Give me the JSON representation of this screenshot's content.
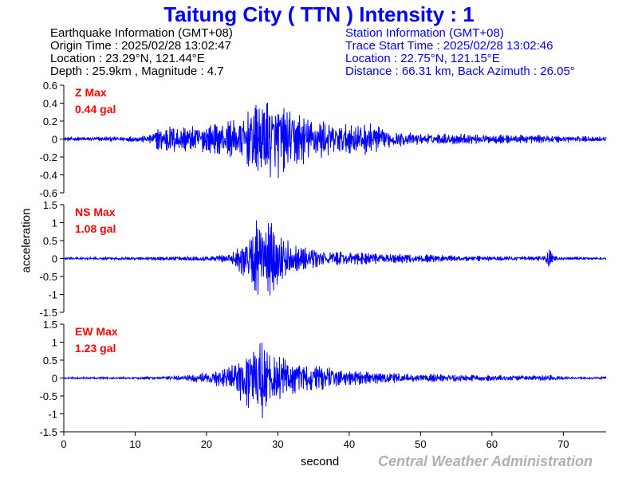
{
  "title": "Taitung City ( TTN ) Intensity : 1",
  "earthquake_info": [
    "Earthquake Information  (GMT+08)",
    "Origin Time : 2025/02/28 13:02:47",
    "Location : 23.29°N, 121.44°E",
    "Depth : 25.9km , Magnitude : 4.7"
  ],
  "station_info": [
    "Station Information  (GMT+08)",
    "Trace Start Time : 2025/02/28 13:02:46",
    "Location : 22.75°N, 121.15°E",
    "Distance : 66.31 km, Back Azimuth : 26.05°"
  ],
  "ylabel": "acceleration",
  "xlabel": "second",
  "credit": "Central Weather Administration",
  "colors": {
    "title": "#0000ff",
    "trace": "#0000ff",
    "max_label": "#ff0000",
    "axis": "#000000",
    "credit": "#b0b0b0"
  },
  "chart_data": [
    {
      "type": "line",
      "component": "Z",
      "max_label": "Z Max",
      "max_value": "0.44 gal",
      "ylim": [
        -0.6,
        0.6
      ],
      "yticks": [
        "0.6",
        "0.4",
        "0.2",
        "0",
        "-0.2",
        "-0.4",
        "-0.6"
      ],
      "xlim": [
        0,
        76
      ],
      "envelope": {
        "t": [
          0,
          5,
          10,
          12,
          14,
          17,
          20,
          22,
          24,
          25,
          26,
          27,
          28,
          29,
          30,
          31,
          33,
          35,
          38,
          40,
          43,
          45,
          50,
          55,
          60,
          65,
          68,
          70,
          72,
          76
        ],
        "amp": [
          0.02,
          0.025,
          0.03,
          0.05,
          0.16,
          0.14,
          0.15,
          0.17,
          0.22,
          0.26,
          0.34,
          0.38,
          0.42,
          0.43,
          0.44,
          0.35,
          0.3,
          0.25,
          0.18,
          0.16,
          0.19,
          0.1,
          0.06,
          0.06,
          0.05,
          0.05,
          0.04,
          0.04,
          0.035,
          0.03
        ]
      }
    },
    {
      "type": "line",
      "component": "NS",
      "max_label": "NS Max",
      "max_value": "1.08 gal",
      "ylim": [
        -1.5,
        1.5
      ],
      "yticks": [
        "1.5",
        "1",
        "0.5",
        "0",
        "-0.5",
        "-1",
        "-1.5"
      ],
      "xlim": [
        0,
        76
      ],
      "envelope": {
        "t": [
          0,
          10,
          15,
          20,
          23,
          24,
          25,
          26,
          27,
          28,
          29,
          30,
          31,
          32,
          34,
          37,
          40,
          45,
          50,
          55,
          60,
          65,
          67.5,
          68,
          68.5,
          70,
          76
        ],
        "amp": [
          0.03,
          0.04,
          0.05,
          0.08,
          0.12,
          0.25,
          0.5,
          0.7,
          1.07,
          0.8,
          1.08,
          0.7,
          0.6,
          0.4,
          0.3,
          0.2,
          0.18,
          0.14,
          0.12,
          0.08,
          0.06,
          0.05,
          0.08,
          0.4,
          0.08,
          0.04,
          0.03
        ]
      }
    },
    {
      "type": "line",
      "component": "EW",
      "max_label": "EW Max",
      "max_value": "1.23 gal",
      "ylim": [
        -1.5,
        1.5
      ],
      "yticks": [
        "1.5",
        "1",
        "0.5",
        "0",
        "-0.5",
        "-1",
        "-1.5"
      ],
      "xlim": [
        0,
        76
      ],
      "envelope": {
        "t": [
          0,
          10,
          15,
          18,
          20,
          22,
          24,
          25,
          26,
          27,
          28,
          29,
          30,
          32,
          34,
          37,
          40,
          45,
          50,
          55,
          60,
          65,
          68,
          69,
          70,
          76
        ],
        "amp": [
          0.02,
          0.03,
          0.05,
          0.1,
          0.18,
          0.25,
          0.4,
          0.7,
          1.0,
          1.23,
          1.1,
          0.8,
          0.6,
          0.5,
          0.4,
          0.3,
          0.2,
          0.15,
          0.12,
          0.1,
          0.08,
          0.07,
          0.1,
          0.06,
          0.04,
          0.03
        ]
      }
    }
  ],
  "xaxis": {
    "ticks": [
      0,
      10,
      20,
      30,
      40,
      50,
      60,
      70
    ],
    "tick_labels": [
      "0",
      "10",
      "20",
      "30",
      "40",
      "50",
      "60",
      "70"
    ]
  }
}
